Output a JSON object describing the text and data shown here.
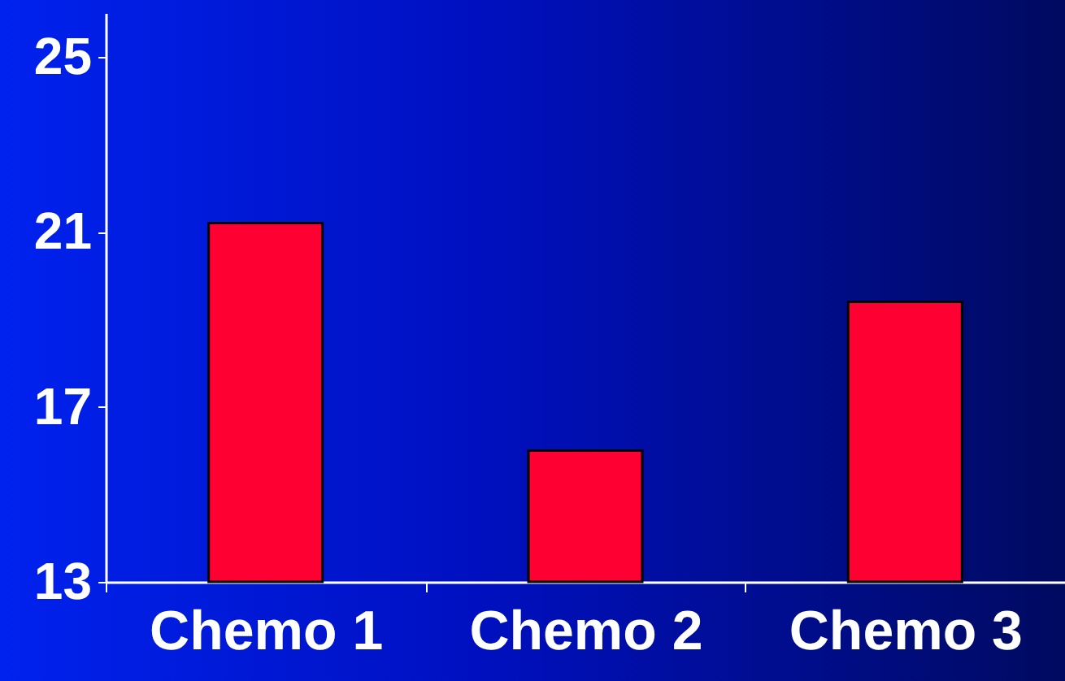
{
  "chart_data": {
    "type": "bar",
    "categories": [
      "Chemo 1",
      "Chemo 2",
      "Chemo 3"
    ],
    "values": [
      21.2,
      16.0,
      19.4
    ],
    "color": "#ff0033",
    "ylim": [
      13,
      26
    ],
    "yticks": [
      13,
      17,
      21,
      25
    ],
    "grid": false
  }
}
